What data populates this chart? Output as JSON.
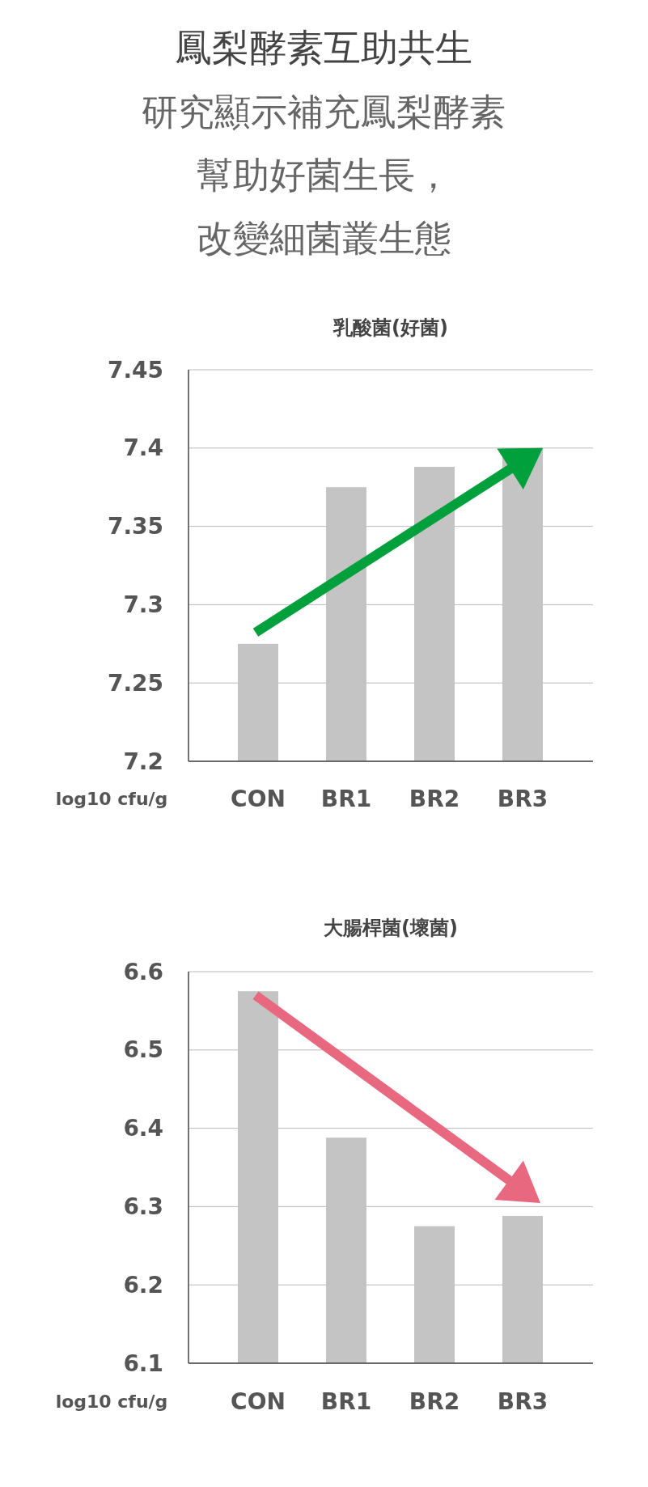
{
  "chart_data": [
    {
      "type": "bar",
      "title": "鳳梨酵素互助共生",
      "subtitle": "研究顯示補充鳳梨酵素幫助好菌生長，改變細菌叢生態",
      "annotations": [
        "乳酸菌(好菌)"
      ],
      "ylabel": "log10 cfu/g",
      "categories": [
        "CON",
        "BR1",
        "BR2",
        "BR3"
      ],
      "values": [
        7.275,
        7.375,
        7.388,
        7.4
      ],
      "color": "#c4c4c4",
      "ylim": [
        7.2,
        7.45
      ],
      "yticks": [
        7.2,
        7.25,
        7.3,
        7.35,
        7.4,
        7.45
      ],
      "grid": "y"
    },
    {
      "type": "bar",
      "annotations": [
        "大腸桿菌(壞菌)"
      ],
      "ylabel": "log10 cfu/g",
      "categories": [
        "CON",
        "BR1",
        "BR2",
        "BR3"
      ],
      "values": [
        6.575,
        6.388,
        6.275,
        6.288
      ],
      "color": "#c4c4c4",
      "ylim": [
        6.1,
        6.6
      ],
      "yticks": [
        6.1,
        6.2,
        6.3,
        6.4,
        6.5,
        6.6
      ],
      "grid": "y"
    }
  ]
}
